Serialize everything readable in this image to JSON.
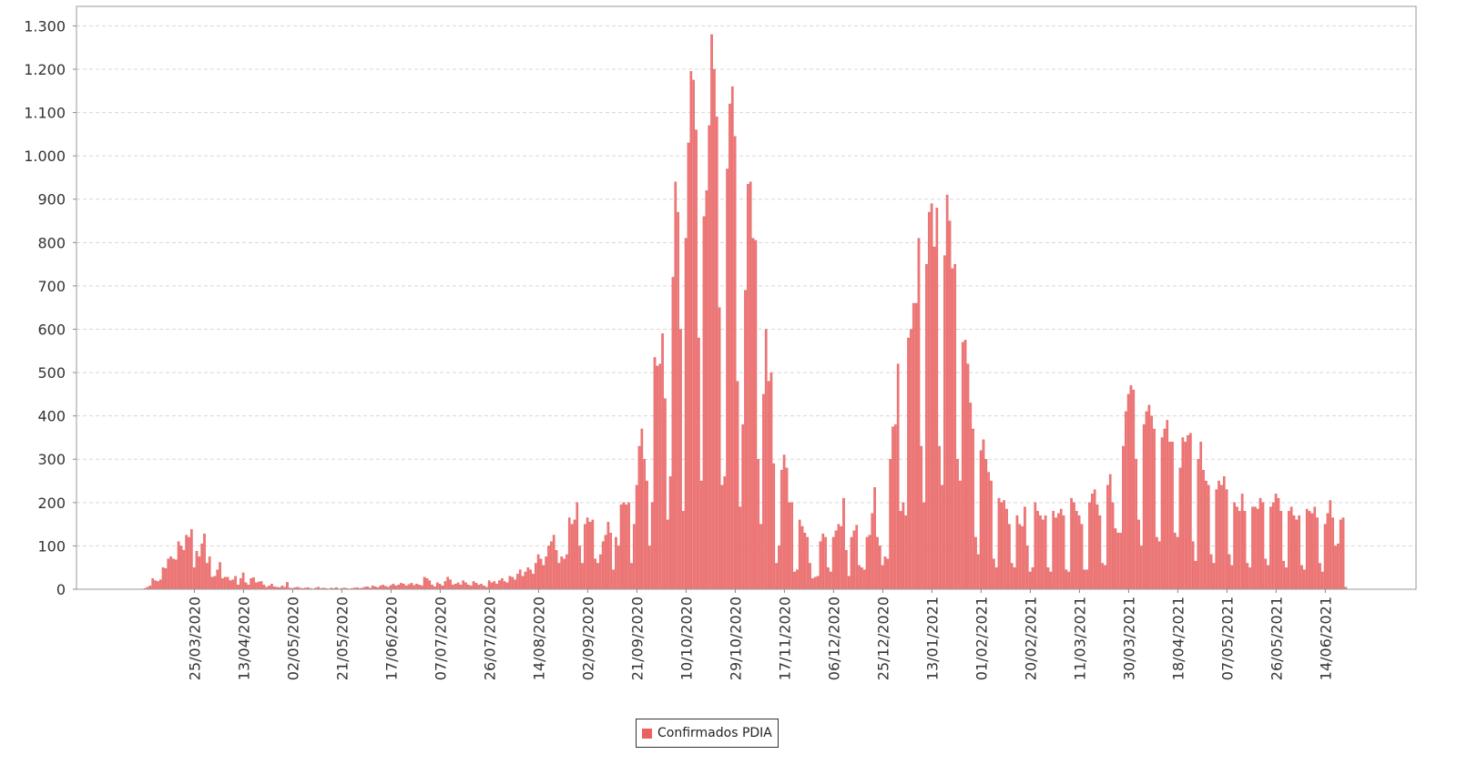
{
  "chart_data": {
    "type": "bar",
    "title": "",
    "xlabel": "",
    "ylabel": "",
    "ylim": [
      0,
      1345
    ],
    "y_ticks": [
      0,
      100,
      200,
      300,
      400,
      500,
      600,
      700,
      800,
      900,
      1000,
      1100,
      1200,
      1300
    ],
    "y_tick_labels": [
      "0",
      "100",
      "200",
      "300",
      "400",
      "500",
      "600",
      "700",
      "800",
      "900",
      "1.000",
      "1.100",
      "1.200",
      "1.300"
    ],
    "x_tick_labels": [
      "25/03/2020",
      "13/04/2020",
      "02/05/2020",
      "21/05/2020",
      "17/06/2020",
      "07/07/2020",
      "26/07/2020",
      "14/08/2020",
      "02/09/2020",
      "21/09/2020",
      "10/10/2020",
      "29/10/2020",
      "17/11/2020",
      "06/12/2020",
      "25/12/2020",
      "13/01/2021",
      "01/02/2021",
      "20/02/2021",
      "11/03/2021",
      "30/03/2021",
      "18/04/2021",
      "07/05/2021",
      "26/05/2021",
      "14/06/2021"
    ],
    "grid": true,
    "legend_position": "bottom",
    "colors": {
      "bar": "#f07676",
      "bar_edge": "#d85050",
      "grid": "#d8d8d8",
      "axis": "#888888"
    },
    "series": [
      {
        "name": "Confirmados PDIA",
        "values": [
          2,
          5,
          8,
          25,
          20,
          18,
          22,
          50,
          48,
          70,
          75,
          70,
          68,
          110,
          100,
          90,
          125,
          120,
          138,
          50,
          88,
          75,
          105,
          128,
          60,
          75,
          28,
          30,
          45,
          62,
          25,
          28,
          28,
          20,
          22,
          30,
          10,
          25,
          38,
          15,
          10,
          25,
          27,
          15,
          17,
          18,
          10,
          5,
          8,
          12,
          6,
          5,
          4,
          8,
          5,
          16,
          3,
          2,
          4,
          5,
          3,
          2,
          3,
          4,
          2,
          1,
          3,
          5,
          2,
          3,
          2,
          1,
          3,
          2,
          4,
          1,
          2,
          3,
          2,
          1,
          2,
          3,
          4,
          2,
          3,
          5,
          6,
          3,
          8,
          6,
          4,
          8,
          10,
          7,
          5,
          9,
          12,
          8,
          10,
          14,
          12,
          8,
          11,
          14,
          9,
          12,
          10,
          8,
          28,
          25,
          20,
          10,
          6,
          15,
          12,
          8,
          18,
          28,
          22,
          10,
          12,
          15,
          10,
          20,
          15,
          10,
          8,
          18,
          14,
          10,
          12,
          8,
          5,
          20,
          15,
          18,
          12,
          20,
          25,
          18,
          15,
          30,
          28,
          22,
          35,
          45,
          30,
          40,
          50,
          45,
          35,
          60,
          80,
          70,
          55,
          75,
          100,
          110,
          125,
          90,
          60,
          75,
          70,
          80,
          165,
          150,
          160,
          200,
          100,
          60,
          150,
          165,
          155,
          160,
          70,
          60,
          80,
          110,
          125,
          155,
          130,
          45,
          120,
          100,
          195,
          200,
          195,
          200,
          60,
          150,
          240,
          330,
          370,
          300,
          250,
          100,
          200,
          535,
          515,
          520,
          590,
          440,
          160,
          260,
          720,
          940,
          870,
          600,
          180,
          810,
          1030,
          1195,
          1175,
          1060,
          580,
          250,
          860,
          920,
          1070,
          1280,
          1200,
          1090,
          650,
          240,
          260,
          970,
          1120,
          1160,
          1045,
          480,
          190,
          380,
          690,
          935,
          940,
          810,
          805,
          300,
          150,
          450,
          600,
          480,
          500,
          290,
          60,
          100,
          275,
          310,
          280,
          200,
          200,
          40,
          45,
          160,
          145,
          130,
          120,
          60,
          25,
          28,
          30,
          110,
          128,
          120,
          50,
          40,
          120,
          135,
          150,
          145,
          210,
          90,
          30,
          120,
          135,
          148,
          55,
          50,
          45,
          120,
          125,
          175,
          235,
          120,
          100,
          55,
          75,
          70,
          300,
          375,
          380,
          520,
          180,
          200,
          170,
          580,
          600,
          660,
          660,
          810,
          330,
          200,
          750,
          870,
          890,
          790,
          880,
          330,
          240,
          770,
          910,
          850,
          740,
          750,
          300,
          250,
          570,
          575,
          520,
          430,
          370,
          120,
          80,
          320,
          345,
          300,
          270,
          250,
          70,
          50,
          210,
          200,
          205,
          185,
          150,
          60,
          50,
          170,
          150,
          145,
          190,
          100,
          40,
          50,
          200,
          180,
          170,
          160,
          170,
          50,
          40,
          180,
          165,
          175,
          185,
          170,
          45,
          40,
          210,
          200,
          180,
          170,
          150,
          45,
          45,
          200,
          220,
          230,
          195,
          170,
          60,
          55,
          240,
          265,
          200,
          140,
          130,
          130,
          330,
          410,
          450,
          470,
          460,
          300,
          160,
          100,
          380,
          410,
          425,
          400,
          370,
          120,
          110,
          350,
          370,
          390,
          340,
          340,
          130,
          120,
          280,
          350,
          340,
          355,
          360,
          110,
          65,
          300,
          340,
          275,
          250,
          240,
          80,
          60,
          230,
          250,
          240,
          260,
          230,
          80,
          55,
          200,
          190,
          180,
          220,
          180,
          60,
          50,
          190,
          190,
          185,
          210,
          200,
          70,
          55,
          190,
          200,
          220,
          210,
          180,
          65,
          50,
          180,
          190,
          170,
          160,
          170,
          55,
          45,
          185,
          180,
          175,
          190,
          165,
          60,
          40,
          150,
          175,
          205,
          165,
          100,
          105,
          160,
          165,
          5
        ]
      }
    ],
    "x": [
      "06/03/2020",
      "07/03/2020",
      "08/03/2020",
      "09/03/2020",
      "10/03/2020",
      "11/03/2020",
      "12/03/2020",
      "13/03/2020",
      "14/03/2020",
      "15/03/2020",
      "16/03/2020",
      "17/03/2020",
      "18/03/2020",
      "19/03/2020",
      "20/03/2020",
      "21/03/2020",
      "22/03/2020",
      "23/03/2020",
      "24/03/2020",
      "25/03/2020",
      "26/03/2020",
      "27/03/2020",
      "28/03/2020",
      "29/03/2020",
      "30/03/2020",
      "31/03/2020",
      "01/04/2020",
      "02/04/2020",
      "03/04/2020",
      "04/04/2020",
      "05/04/2020",
      "06/04/2020",
      "07/04/2020",
      "08/04/2020",
      "09/04/2020",
      "10/04/2020",
      "11/04/2020",
      "12/04/2020",
      "13/04/2020",
      "14/04/2020",
      "15/04/2020",
      "16/04/2020",
      "17/04/2020",
      "18/04/2020",
      "19/04/2020",
      "20/04/2020",
      "21/04/2020",
      "22/04/2020",
      "23/04/2020",
      "24/04/2020",
      "25/04/2020",
      "26/04/2020",
      "27/04/2020",
      "28/04/2020",
      "29/04/2020",
      "30/04/2020",
      "01/05/2020",
      "02/05/2020",
      "03/05/2020",
      "04/05/2020",
      "05/05/2020",
      "06/05/2020",
      "07/05/2020",
      "08/05/2020",
      "09/05/2020",
      "10/05/2020",
      "11/05/2020",
      "12/05/2020",
      "13/05/2020",
      "14/05/2020",
      "15/05/2020",
      "16/05/2020",
      "17/05/2020",
      "18/05/2020",
      "19/05/2020",
      "20/05/2020",
      "21/05/2020",
      "22/05/2020",
      "23/05/2020",
      "24/05/2020",
      "25/05/2020",
      "26/05/2020",
      "27/05/2020",
      "28/05/2020",
      "29/05/2020",
      "07/06/2020",
      "08/06/2020",
      "09/06/2020",
      "10/06/2020",
      "11/06/2020",
      "12/06/2020",
      "13/06/2020",
      "14/06/2020",
      "15/06/2020",
      "16/06/2020",
      "17/06/2020",
      "18/06/2020",
      "19/06/2020",
      "20/06/2020",
      "22/06/2020",
      "23/06/2020",
      "24/06/2020",
      "25/06/2020",
      "26/06/2020",
      "27/06/2020",
      "28/06/2020",
      "29/06/2020",
      "30/06/2020",
      "01/07/2020",
      "02/07/2020",
      "03/07/2020",
      "04/07/2020",
      "05/07/2020",
      "06/07/2020",
      "07/07/2020",
      "08/07/2020",
      "09/07/2020",
      "10/07/2020",
      "11/07/2020",
      "12/07/2020",
      "13/07/2020",
      "14/07/2020",
      "15/07/2020",
      "16/07/2020",
      "17/07/2020",
      "18/07/2020",
      "19/07/2020",
      "20/07/2020",
      "21/07/2020",
      "22/07/2020",
      "23/07/2020",
      "24/07/2020",
      "25/07/2020",
      "26/07/2020",
      "27/07/2020",
      "28/07/2020",
      "29/07/2020",
      "30/07/2020",
      "31/07/2020",
      "01/08/2020",
      "02/08/2020",
      "03/08/2020",
      "04/08/2020",
      "05/08/2020",
      "06/08/2020",
      "07/08/2020",
      "08/08/2020",
      "09/08/2020",
      "10/08/2020",
      "11/08/2020",
      "12/08/2020",
      "13/08/2020",
      "14/08/2020",
      "15/08/2020",
      "16/08/2020",
      "17/08/2020",
      "18/08/2020",
      "19/08/2020",
      "20/08/2020",
      "21/08/2020",
      "22/08/2020",
      "23/08/2020",
      "24/08/2020",
      "25/08/2020",
      "26/08/2020",
      "27/08/2020",
      "28/08/2020",
      "29/08/2020",
      "30/08/2020",
      "31/08/2020",
      "01/09/2020",
      "02/09/2020",
      "03/09/2020",
      "04/09/2020",
      "05/09/2020",
      "06/09/2020",
      "07/09/2020",
      "08/09/2020",
      "09/09/2020",
      "10/09/2020",
      "11/09/2020",
      "12/09/2020",
      "13/09/2020",
      "14/09/2020",
      "15/09/2020",
      "16/09/2020",
      "17/09/2020",
      "18/09/2020",
      "19/09/2020",
      "20/09/2020",
      "21/09/2020",
      "22/09/2020",
      "23/09/2020",
      "24/09/2020",
      "25/09/2020",
      "26/09/2020",
      "27/09/2020",
      "28/09/2020",
      "29/09/2020",
      "30/09/2020",
      "01/10/2020",
      "02/10/2020",
      "03/10/2020",
      "04/10/2020",
      "05/10/2020",
      "06/10/2020",
      "07/10/2020",
      "08/10/2020",
      "09/10/2020",
      "10/10/2020",
      "11/10/2020",
      "12/10/2020",
      "13/10/2020",
      "14/10/2020",
      "15/10/2020",
      "16/10/2020",
      "17/10/2020",
      "18/10/2020",
      "19/10/2020",
      "20/10/2020",
      "21/10/2020",
      "22/10/2020",
      "23/10/2020",
      "24/10/2020",
      "25/10/2020",
      "26/10/2020",
      "27/10/2020",
      "28/10/2020",
      "29/10/2020",
      "30/10/2020",
      "31/10/2020",
      "01/11/2020",
      "02/11/2020",
      "03/11/2020",
      "04/11/2020",
      "05/11/2020",
      "06/11/2020",
      "07/11/2020",
      "08/11/2020",
      "09/11/2020",
      "10/11/2020",
      "11/11/2020",
      "12/11/2020",
      "13/11/2020",
      "14/11/2020",
      "15/11/2020",
      "16/11/2020",
      "17/11/2020",
      "18/11/2020",
      "19/11/2020",
      "20/11/2020",
      "21/11/2020",
      "22/11/2020",
      "23/11/2020",
      "24/11/2020",
      "25/11/2020",
      "26/11/2020",
      "27/11/2020",
      "28/11/2020",
      "29/11/2020",
      "30/11/2020",
      "01/12/2020",
      "02/12/2020",
      "03/12/2020",
      "04/12/2020",
      "05/12/2020",
      "06/12/2020",
      "07/12/2020",
      "08/12/2020",
      "09/12/2020",
      "10/12/2020",
      "11/12/2020",
      "12/12/2020",
      "13/12/2020",
      "14/12/2020",
      "15/12/2020",
      "16/12/2020",
      "17/12/2020",
      "18/12/2020",
      "19/12/2020",
      "20/12/2020",
      "21/12/2020",
      "22/12/2020",
      "23/12/2020",
      "24/12/2020",
      "25/12/2020",
      "26/12/2020",
      "27/12/2020",
      "28/12/2020",
      "29/12/2020",
      "30/12/2020",
      "31/12/2020",
      "01/01/2021",
      "02/01/2021",
      "03/01/2021",
      "04/01/2021",
      "05/01/2021",
      "06/01/2021",
      "07/01/2021",
      "08/01/2021",
      "09/01/2021",
      "10/01/2021",
      "11/01/2021",
      "12/01/2021",
      "13/01/2021",
      "14/01/2021",
      "15/01/2021",
      "16/01/2021",
      "17/01/2021",
      "18/01/2021",
      "19/01/2021",
      "20/01/2021",
      "21/01/2021",
      "22/01/2021",
      "23/01/2021",
      "24/01/2021",
      "25/01/2021",
      "26/01/2021",
      "27/01/2021",
      "28/01/2021",
      "29/01/2021",
      "30/01/2021",
      "31/01/2021",
      "01/02/2021",
      "02/02/2021",
      "03/02/2021",
      "04/02/2021",
      "05/02/2021",
      "06/02/2021",
      "07/02/2021",
      "08/02/2021",
      "09/02/2021",
      "10/02/2021",
      "11/02/2021",
      "12/02/2021",
      "13/02/2021",
      "14/02/2021",
      "15/02/2021",
      "16/02/2021",
      "17/02/2021",
      "18/02/2021",
      "19/02/2021",
      "20/02/2021",
      "21/02/2021",
      "22/02/2021",
      "23/02/2021",
      "24/02/2021",
      "25/02/2021",
      "26/02/2021",
      "27/02/2021",
      "28/02/2021",
      "01/03/2021",
      "02/03/2021",
      "03/03/2021",
      "04/03/2021",
      "05/03/2021",
      "06/03/2021",
      "07/03/2021",
      "08/03/2021",
      "09/03/2021",
      "10/03/2021",
      "11/03/2021",
      "12/03/2021",
      "13/03/2021",
      "14/03/2021",
      "15/03/2021",
      "16/03/2021",
      "17/03/2021",
      "18/03/2021",
      "19/03/2021",
      "20/03/2021",
      "21/03/2021",
      "22/03/2021",
      "23/03/2021",
      "24/03/2021",
      "25/03/2021",
      "26/03/2021",
      "27/03/2021",
      "28/03/2021",
      "29/03/2021",
      "30/03/2021",
      "31/03/2021",
      "01/04/2021",
      "02/04/2021",
      "03/04/2021",
      "04/04/2021",
      "05/04/2021",
      "06/04/2021",
      "07/04/2021",
      "08/04/2021",
      "09/04/2021",
      "10/04/2021",
      "11/04/2021",
      "12/04/2021",
      "13/04/2021",
      "14/04/2021",
      "15/04/2021",
      "16/04/2021",
      "17/04/2021",
      "18/04/2021",
      "19/04/2021",
      "20/04/2021",
      "21/04/2021",
      "22/04/2021",
      "23/04/2021",
      "24/04/2021",
      "25/04/2021",
      "26/04/2021",
      "27/04/2021",
      "28/04/2021",
      "29/04/2021",
      "30/04/2021",
      "01/05/2021",
      "02/05/2021",
      "03/05/2021",
      "04/05/2021",
      "05/05/2021",
      "06/05/2021",
      "07/05/2021",
      "08/05/2021",
      "09/05/2021",
      "10/05/2021",
      "11/05/2021",
      "12/05/2021",
      "13/05/2021",
      "14/05/2021",
      "15/05/2021",
      "16/05/2021",
      "17/05/2021",
      "18/05/2021",
      "19/05/2021",
      "20/05/2021",
      "21/05/2021",
      "22/05/2021",
      "23/05/2021",
      "24/05/2021",
      "25/05/2021",
      "26/05/2021",
      "27/05/2021",
      "28/05/2021",
      "29/05/2021",
      "30/05/2021",
      "31/05/2021",
      "01/06/2021",
      "02/06/2021",
      "03/06/2021",
      "04/06/2021",
      "05/06/2021",
      "06/06/2021",
      "07/06/2021",
      "08/06/2021",
      "09/06/2021",
      "10/06/2021",
      "11/06/2021",
      "12/06/2021",
      "13/06/2021",
      "14/06/2021",
      "15/06/2021",
      "16/06/2021",
      "17/06/2021",
      "18/06/2021",
      "19/06/2021",
      "20/06/2021",
      "21/06/2021",
      "22/06/2021"
    ]
  },
  "legend": {
    "label": "Confirmados PDIA"
  }
}
